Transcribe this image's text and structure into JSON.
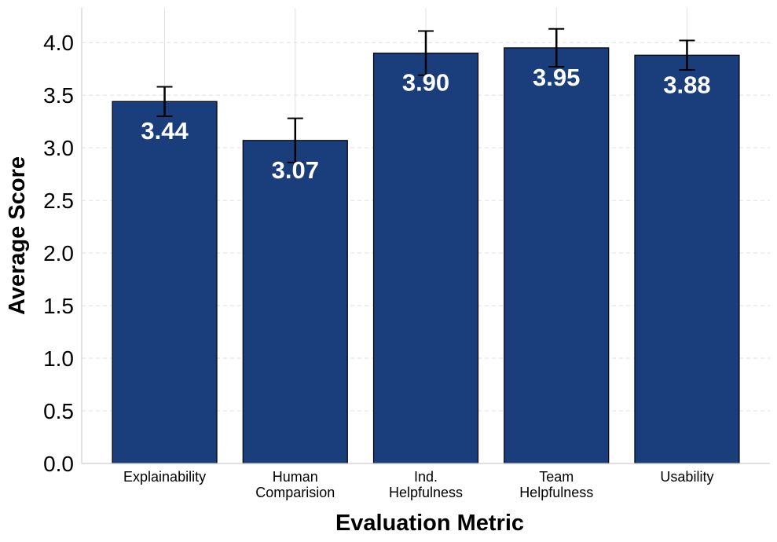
{
  "chart_data": {
    "type": "bar",
    "title": "",
    "xlabel": "Evaluation Metric",
    "ylabel": "Average Score",
    "categories": [
      [
        "Explainability"
      ],
      [
        "Human",
        "Comparision"
      ],
      [
        "Ind.",
        "Helpfulness"
      ],
      [
        "Team",
        "Helpfulness"
      ],
      [
        "Usability"
      ]
    ],
    "values": [
      3.44,
      3.07,
      3.9,
      3.95,
      3.88
    ],
    "value_labels": [
      "3.44",
      "3.07",
      "3.90",
      "3.95",
      "3.88"
    ],
    "errors": [
      0.14,
      0.21,
      0.21,
      0.18,
      0.14
    ],
    "ylim": [
      0,
      4.33
    ],
    "yticks": [
      0.0,
      0.5,
      1.0,
      1.5,
      2.0,
      2.5,
      3.0,
      3.5,
      4.0
    ],
    "ytick_labels": [
      "0.0",
      "0.5",
      "1.0",
      "1.5",
      "2.0",
      "2.5",
      "3.0",
      "3.5",
      "4.0"
    ],
    "grid": true,
    "colors": {
      "bar_fill": "#1a3d7c",
      "bar_edge": "#000000",
      "grid": "#e0e0e0",
      "error_bar": "#000000",
      "value_text": "#ffffff"
    }
  }
}
